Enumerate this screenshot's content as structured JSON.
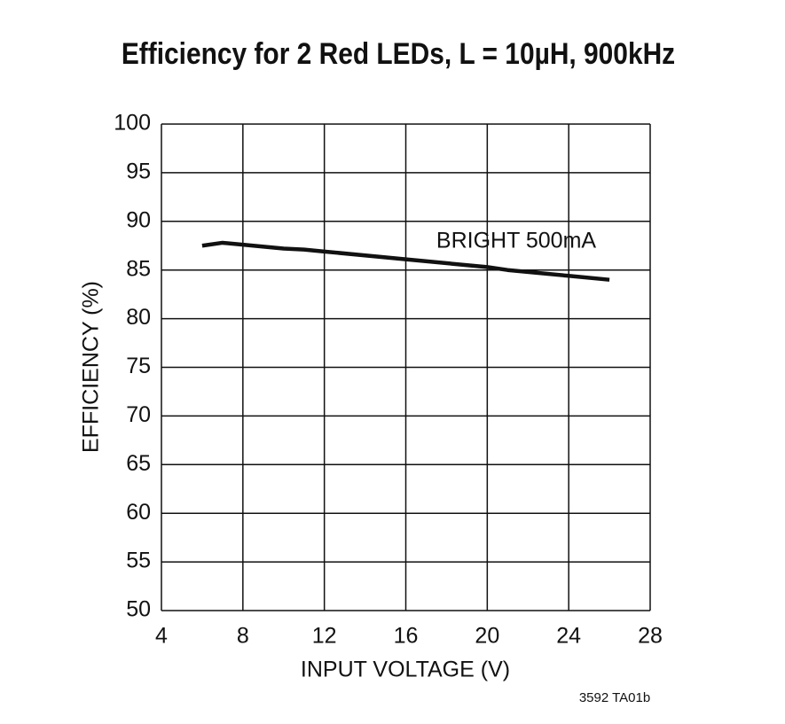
{
  "chart_data": {
    "type": "line",
    "title": "Efficiency for 2 Red LEDs, L = 10µH, 900kHz",
    "xlabel": "INPUT VOLTAGE (V)",
    "ylabel": "EFFICIENCY (%)",
    "annotation": "BRIGHT 500mA",
    "footnote": "3592 TA01b",
    "x": [
      6,
      7,
      8,
      10,
      11,
      12,
      16,
      20,
      21,
      24,
      26
    ],
    "series": [
      {
        "name": "BRIGHT 500mA",
        "color": "#111111",
        "values": [
          87.5,
          87.8,
          87.6,
          87.2,
          87.1,
          86.9,
          86.1,
          85.3,
          85.0,
          84.4,
          84.0
        ]
      }
    ],
    "xlim": [
      4,
      28
    ],
    "xticks": [
      4,
      8,
      12,
      16,
      20,
      24,
      28
    ],
    "ylim": [
      50,
      100
    ],
    "yticks": [
      50,
      55,
      60,
      65,
      70,
      75,
      80,
      85,
      90,
      95,
      100
    ],
    "grid": true
  }
}
